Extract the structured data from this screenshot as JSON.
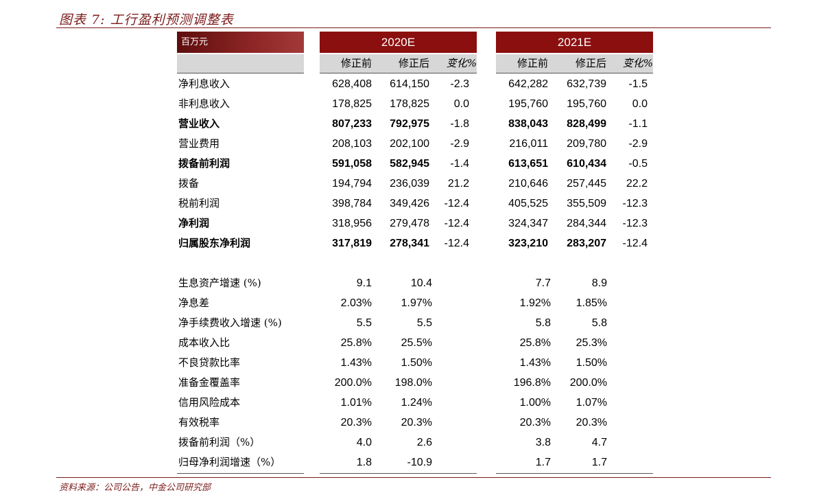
{
  "caption": "图表 7: 工行盈利预测调整表",
  "source": "资料来源：公司公告，中金公司研究部",
  "header": {
    "unit": "百万元",
    "years": [
      "2020E",
      "2021E"
    ],
    "sub": [
      "修正前",
      "修正后",
      "变化%"
    ]
  },
  "main_rows": [
    {
      "label": "净利息收入",
      "bold": false,
      "v": [
        "628,408",
        "614,150",
        "-2.3",
        "642,282",
        "632,739",
        "-1.5"
      ]
    },
    {
      "label": "非利息收入",
      "bold": false,
      "v": [
        "178,825",
        "178,825",
        "0.0",
        "195,760",
        "195,760",
        "0.0"
      ]
    },
    {
      "label": "营业收入",
      "bold": true,
      "v": [
        "807,233",
        "792,975",
        "-1.8",
        "838,043",
        "828,499",
        "-1.1"
      ]
    },
    {
      "label": "营业费用",
      "bold": false,
      "v": [
        "208,103",
        "202,100",
        "-2.9",
        "216,011",
        "209,780",
        "-2.9"
      ]
    },
    {
      "label": "拨备前利润",
      "bold": true,
      "v": [
        "591,058",
        "582,945",
        "-1.4",
        "613,651",
        "610,434",
        "-0.5"
      ]
    },
    {
      "label": "拨备",
      "bold": false,
      "v": [
        "194,794",
        "236,039",
        "21.2",
        "210,646",
        "257,445",
        "22.2"
      ]
    },
    {
      "label": "税前利润",
      "bold": false,
      "v": [
        "398,784",
        "349,426",
        "-12.4",
        "405,525",
        "355,509",
        "-12.3"
      ]
    },
    {
      "label": "净利润",
      "bold": true,
      "v": [
        "318,956",
        "279,478",
        "-12.4",
        "324,347",
        "284,344",
        "-12.3"
      ]
    },
    {
      "label": "归属股东净利润",
      "bold": true,
      "v": [
        "317,819",
        "278,341",
        "-12.4",
        "323,210",
        "283,207",
        "-12.4"
      ]
    }
  ],
  "ratio_rows": [
    {
      "label": "生息资产增速 (%)",
      "v": [
        "9.1",
        "10.4",
        "7.7",
        "8.9"
      ]
    },
    {
      "label": "净息差",
      "v": [
        "2.03%",
        "1.97%",
        "1.92%",
        "1.85%"
      ]
    },
    {
      "label": "净手续费收入增速 (%)",
      "v": [
        "5.5",
        "5.5",
        "5.8",
        "5.8"
      ]
    },
    {
      "label": "成本收入比",
      "v": [
        "25.8%",
        "25.5%",
        "25.8%",
        "25.3%"
      ]
    },
    {
      "label": "不良贷款比率",
      "v": [
        "1.43%",
        "1.50%",
        "1.43%",
        "1.50%"
      ]
    },
    {
      "label": "准备金覆盖率",
      "v": [
        "200.0%",
        "198.0%",
        "196.8%",
        "200.0%"
      ]
    },
    {
      "label": "信用风险成本",
      "v": [
        "1.01%",
        "1.24%",
        "1.00%",
        "1.07%"
      ]
    },
    {
      "label": "有效税率",
      "v": [
        "20.3%",
        "20.3%",
        "20.3%",
        "20.3%"
      ]
    },
    {
      "label": "拨备前利润（%）",
      "v": [
        "4.0",
        "2.6",
        "3.8",
        "4.7"
      ]
    },
    {
      "label": "归母净利润增速（%）",
      "v": [
        "1.8",
        "-10.9",
        "1.7",
        "1.7"
      ]
    }
  ]
}
